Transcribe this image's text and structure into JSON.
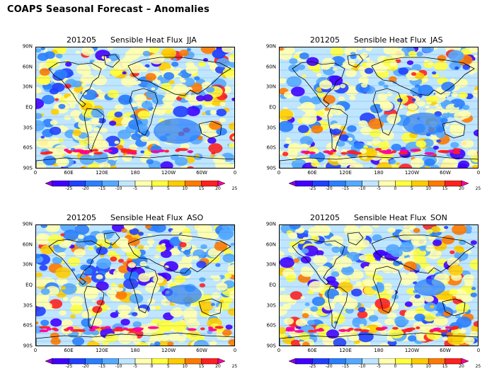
{
  "page": {
    "title": "COAPS Seasonal Forecast – Anomalies"
  },
  "panels": [
    {
      "date": "201205",
      "variable": "Sensible Heat Flux",
      "season": "JJA"
    },
    {
      "date": "201205",
      "variable": "Sensible Heat Flux",
      "season": "JAS"
    },
    {
      "date": "201205",
      "variable": "Sensible Heat Flux",
      "season": "ASO"
    },
    {
      "date": "201205",
      "variable": "Sensible Heat Flux",
      "season": "SON"
    }
  ],
  "axes": {
    "lat_labels": [
      "90N",
      "60N",
      "30N",
      "EQ",
      "30S",
      "60S",
      "90S"
    ],
    "lon_labels": [
      "0",
      "60E",
      "120E",
      "180",
      "120W",
      "60W",
      "0"
    ]
  },
  "colorbar": {
    "labels": [
      "-25",
      "-20",
      "-15",
      "-10",
      "-5",
      "0",
      "5",
      "10",
      "15",
      "20",
      "25"
    ],
    "colors": [
      "#8a00e6",
      "#4000ff",
      "#2040ff",
      "#2a7fff",
      "#55aaff",
      "#bfe6ff",
      "#ffffb0",
      "#ffff40",
      "#ffcc00",
      "#ff7a00",
      "#ff2020",
      "#ff00a0"
    ]
  }
}
